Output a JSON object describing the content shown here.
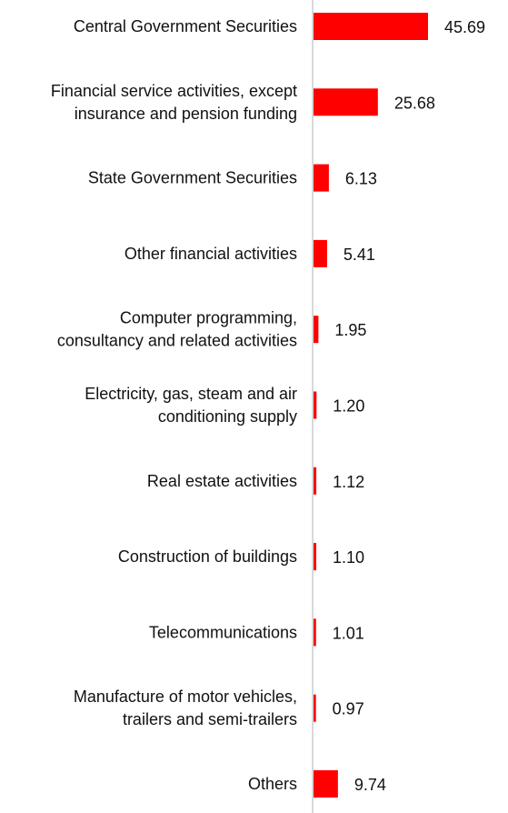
{
  "chart_data": {
    "type": "bar",
    "orientation": "horizontal",
    "title": "",
    "xlabel": "",
    "ylabel": "",
    "categories": [
      [
        "Central Government Securities"
      ],
      [
        "Financial service activities, except",
        "insurance and pension funding"
      ],
      [
        "State Government Securities"
      ],
      [
        "Other financial activities"
      ],
      [
        "Computer programming,",
        "consultancy and related activities"
      ],
      [
        "Electricity, gas, steam and air",
        "conditioning supply"
      ],
      [
        "Real estate activities"
      ],
      [
        "Construction of buildings"
      ],
      [
        "Telecommunications"
      ],
      [
        "Manufacture of motor vehicles,",
        "trailers and semi-trailers"
      ],
      [
        "Others"
      ]
    ],
    "values": [
      45.69,
      25.68,
      6.13,
      5.41,
      1.95,
      1.2,
      1.12,
      1.1,
      1.01,
      0.97,
      9.74
    ],
    "value_labels": [
      "45.69",
      "25.68",
      "6.13",
      "5.41",
      "1.95",
      "1.20",
      "1.12",
      "1.10",
      "1.01",
      "0.97",
      "9.74"
    ],
    "xlim": [
      0,
      50
    ],
    "grid": false,
    "legend": "none",
    "bar_color": "#ff0000",
    "axis_color": "#cccccc"
  }
}
